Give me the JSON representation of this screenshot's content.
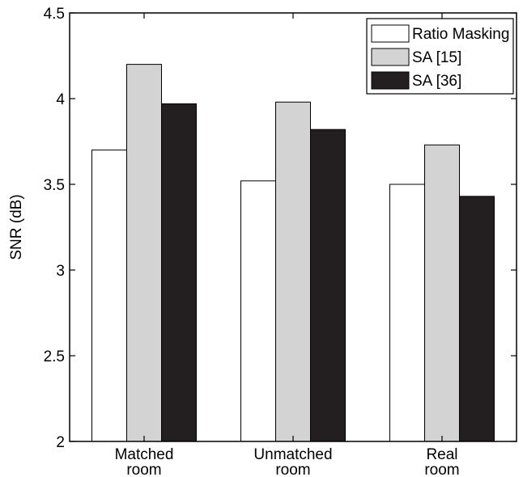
{
  "chart_data": {
    "type": "bar",
    "title": "",
    "xlabel": "",
    "ylabel": "SNR (dB)",
    "ylim": [
      2,
      4.5
    ],
    "yticks": [
      "2",
      "2.5",
      "3",
      "3.5",
      "4",
      "4.5"
    ],
    "categories": [
      [
        "Matched",
        "room"
      ],
      [
        "Unmatched",
        "room"
      ],
      [
        "Real",
        "room"
      ]
    ],
    "series": [
      {
        "name": "Ratio Masking",
        "color": "#ffffff",
        "values": [
          3.7,
          3.52,
          3.5
        ]
      },
      {
        "name": "SA [15]",
        "color": "#d3d3d3",
        "values": [
          4.2,
          3.98,
          3.73
        ]
      },
      {
        "name": "SA [36]",
        "color": "#231f20",
        "values": [
          3.97,
          3.82,
          3.43
        ]
      }
    ],
    "legend_position": "top-right",
    "grid": false
  }
}
